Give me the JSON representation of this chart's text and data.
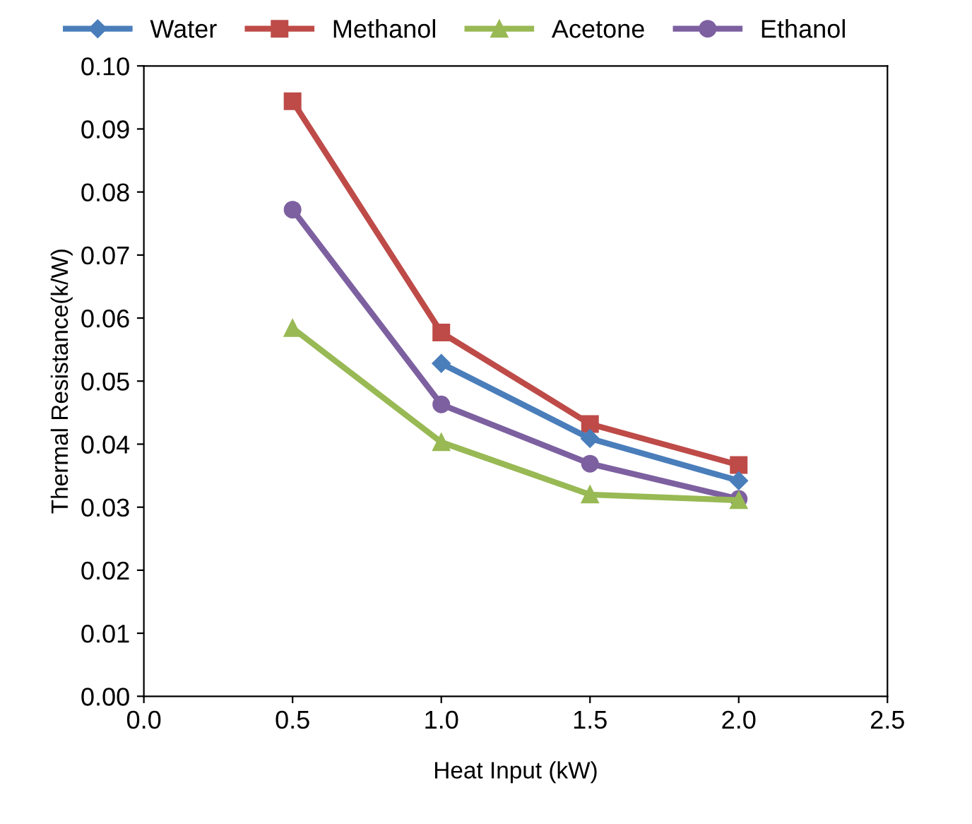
{
  "chart_data": {
    "type": "line",
    "xlabel": "Heat Input (kW)",
    "ylabel": "Thermal Resistance(k/W)",
    "xlim": [
      0.0,
      2.5
    ],
    "xticks": [
      {
        "value": 0.0,
        "label": "0.0"
      },
      {
        "value": 0.5,
        "label": "0.5"
      },
      {
        "value": 1.0,
        "label": "1.0"
      },
      {
        "value": 1.5,
        "label": "1.5"
      },
      {
        "value": 2.0,
        "label": "2.0"
      },
      {
        "value": 2.5,
        "label": "2.5"
      }
    ],
    "ylim": [
      0.0,
      0.1
    ],
    "yticks": [
      {
        "value": 0.0,
        "label": "0.00"
      },
      {
        "value": 0.01,
        "label": "0.01"
      },
      {
        "value": 0.02,
        "label": "0.02"
      },
      {
        "value": 0.03,
        "label": "0.03"
      },
      {
        "value": 0.04,
        "label": "0.04"
      },
      {
        "value": 0.05,
        "label": "0.05"
      },
      {
        "value": 0.06,
        "label": "0.06"
      },
      {
        "value": 0.07,
        "label": "0.07"
      },
      {
        "value": 0.08,
        "label": "0.08"
      },
      {
        "value": 0.09,
        "label": "0.09"
      },
      {
        "value": 0.1,
        "label": "0.10"
      }
    ],
    "grid": false,
    "legend": "top",
    "line_style": "solid",
    "series": [
      {
        "name": "Water",
        "color": "#4a7ebb",
        "marker": "diamond",
        "x": [
          1.0,
          1.5,
          2.0
        ],
        "values": [
          0.0528,
          0.0409,
          0.0342
        ]
      },
      {
        "name": "Methanol",
        "color": "#be4b48",
        "marker": "square",
        "x": [
          0.5,
          1.0,
          1.5,
          2.0
        ],
        "values": [
          0.0944,
          0.0577,
          0.0432,
          0.0367
        ]
      },
      {
        "name": "Acetone",
        "color": "#98b954",
        "marker": "triangle",
        "x": [
          0.5,
          1.0,
          1.5,
          2.0
        ],
        "values": [
          0.0584,
          0.0403,
          0.032,
          0.0311
        ]
      },
      {
        "name": "Ethanol",
        "color": "#7d60a0",
        "marker": "circle",
        "x": [
          0.5,
          1.0,
          1.5,
          2.0
        ],
        "values": [
          0.0772,
          0.0463,
          0.0369,
          0.0313
        ]
      }
    ]
  }
}
